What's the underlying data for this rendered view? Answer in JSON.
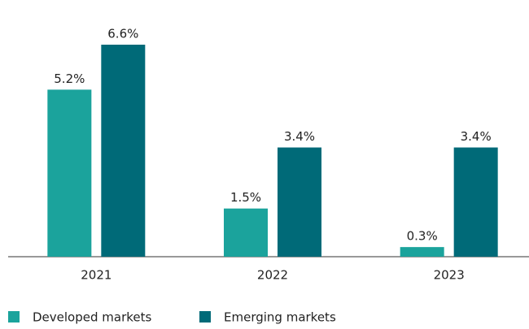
{
  "chart_data": {
    "type": "bar",
    "categories": [
      "2021",
      "2022",
      "2023"
    ],
    "series": [
      {
        "name": "Developed markets",
        "color": "#1ba39c",
        "values": [
          5.2,
          1.5,
          0.3
        ],
        "value_labels": [
          "5.2%",
          "1.5%",
          "0.3%"
        ]
      },
      {
        "name": "Emerging markets",
        "color": "#006a78",
        "values": [
          6.6,
          3.4,
          3.4
        ],
        "value_labels": [
          "6.6%",
          "3.4%",
          "3.4%"
        ]
      }
    ],
    "legend": "bottom-left"
  }
}
